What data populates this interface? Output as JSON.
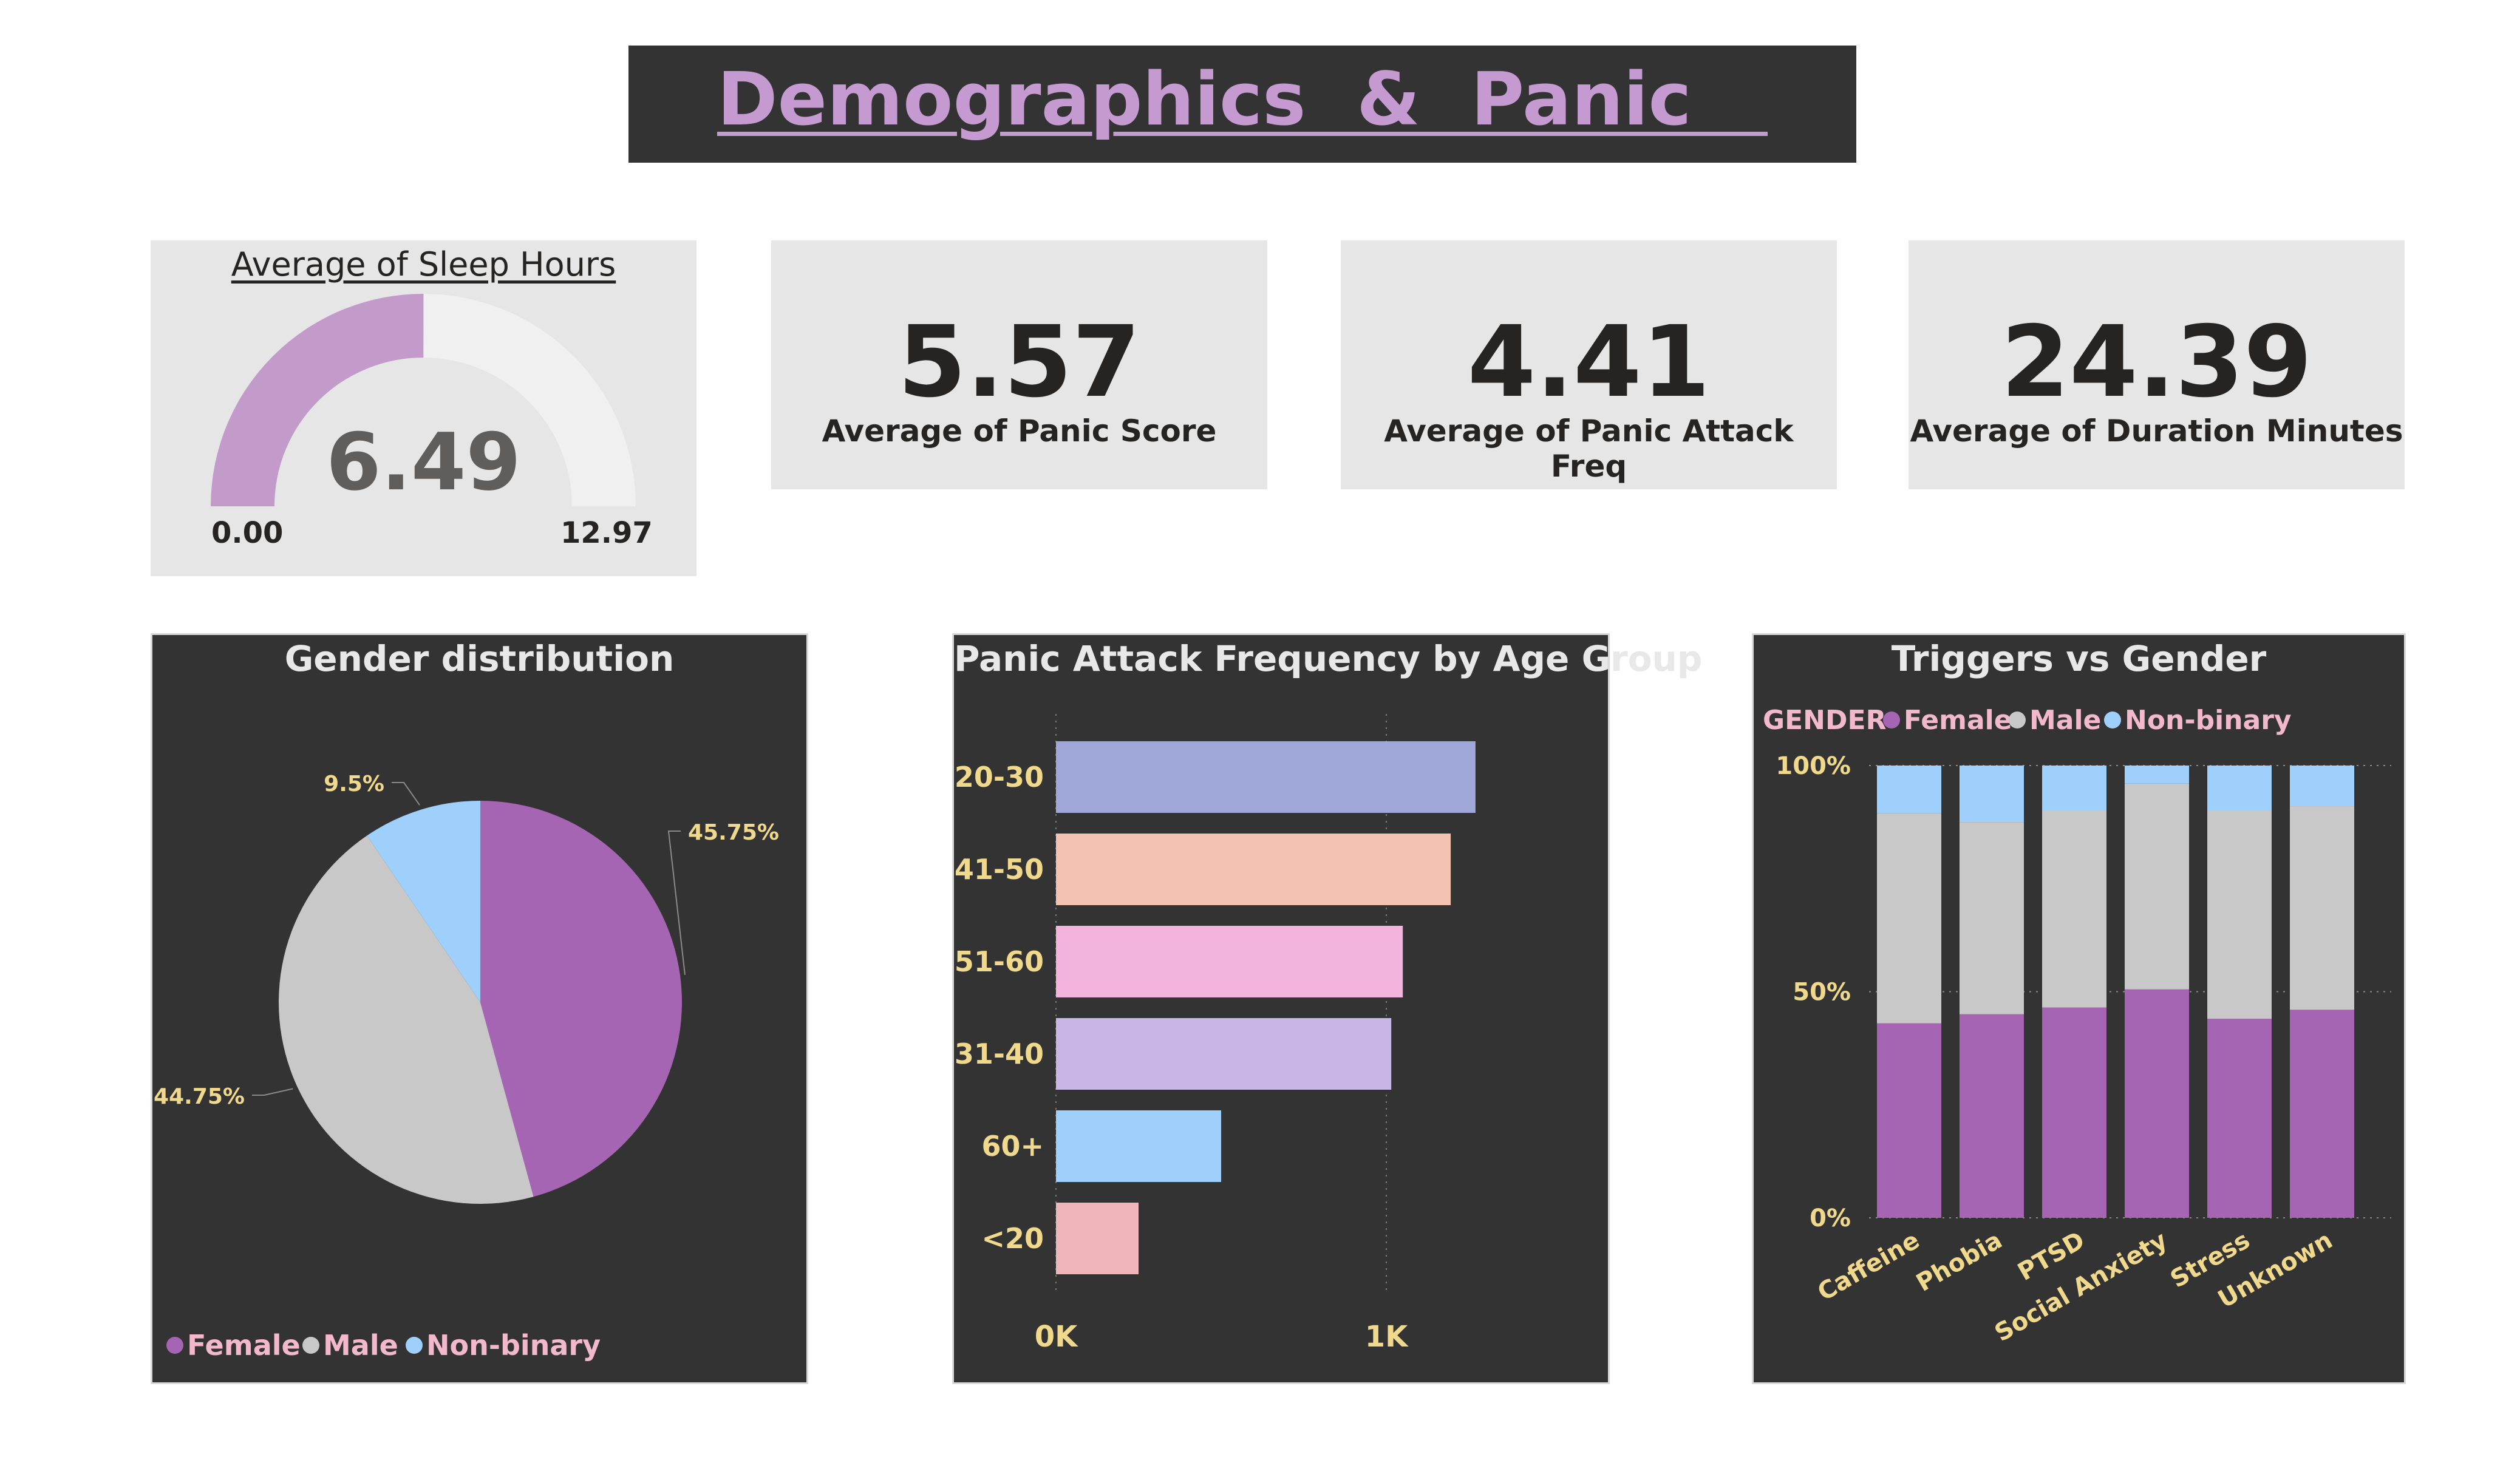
{
  "banner": {
    "title": "Demographics  &  Panic   "
  },
  "gauge": {
    "title": "Average of Sleep Hours",
    "value": "6.49",
    "min": "0.00",
    "max": "12.97",
    "value_num": 6.49,
    "min_num": 0,
    "max_num": 12.97,
    "fill_color": "#c39bcb",
    "track_color": "#f0f0f0"
  },
  "kpis": [
    {
      "value": "5.57",
      "label": "Average of Panic Score"
    },
    {
      "value": "4.41",
      "label": "Average of Panic Attack Freq"
    },
    {
      "value": "24.39",
      "label": "Average of Duration Minutes"
    }
  ],
  "colors": {
    "female": "#a665b3",
    "male": "#c8c8c8",
    "nonbinary": "#9fd0fb",
    "panel_bg": "#333333",
    "tick_text": "#f0d98c",
    "legend_text": "#f2b8cb"
  },
  "chart_data": [
    {
      "type": "pie",
      "title": "Gender distribution",
      "categories": [
        "Female",
        "Male",
        "Non-binary"
      ],
      "values": [
        45.75,
        44.75,
        9.5
      ],
      "data_labels": [
        "45.75%",
        "44.75%",
        "9.5%"
      ],
      "colors": [
        "#a665b3",
        "#c8c8c8",
        "#9fd0fb"
      ],
      "legend": [
        "Female",
        "Male",
        "Non-binary"
      ],
      "legend_position": "bottom-left"
    },
    {
      "type": "bar",
      "orientation": "horizontal",
      "title": "Panic Attack Frequency by Age Group",
      "categories": [
        "20-30",
        "41-50",
        "51-60",
        "31-40",
        "60+",
        "<20"
      ],
      "values": [
        1270,
        1195,
        1050,
        1015,
        500,
        250
      ],
      "colors": [
        "#a0a8da",
        "#f4c2b0",
        "#f2b3dc",
        "#c8b6e6",
        "#9fd0fb",
        "#efb5bb"
      ],
      "x_ticks": [
        "0K",
        "1K"
      ],
      "xlim": [
        0,
        1650
      ]
    },
    {
      "type": "bar",
      "stacked": "100%",
      "title": "Triggers vs Gender",
      "legend_title": "GENDER",
      "legend_position": "top-left",
      "categories": [
        "Caffeine",
        "Phobia",
        "PTSD",
        "Social Anxiety",
        "Stress",
        "Unknown"
      ],
      "series": [
        {
          "name": "Female",
          "values": [
            43,
            45,
            46.5,
            50.5,
            44,
            46
          ]
        },
        {
          "name": "Male",
          "values": [
            46.5,
            42.5,
            43.5,
            45.5,
            46,
            45
          ]
        },
        {
          "name": "Non-binary",
          "values": [
            10.5,
            12.5,
            10,
            4,
            10,
            9
          ]
        }
      ],
      "y_ticks": [
        "0%",
        "50%",
        "100%"
      ],
      "ylim": [
        0,
        100
      ]
    }
  ]
}
